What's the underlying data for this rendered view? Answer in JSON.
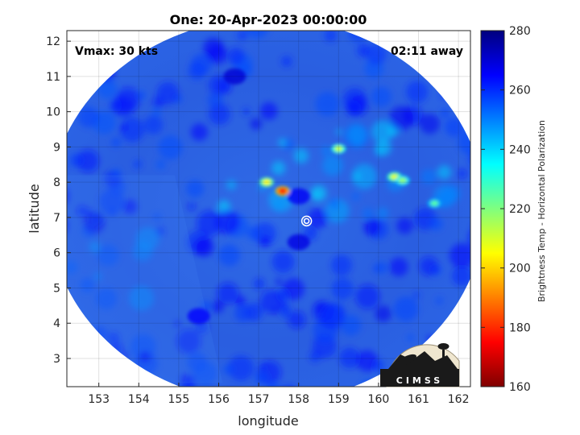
{
  "chart_data": {
    "type": "heatmap",
    "title": "One: 20-Apr-2023 00:00:00",
    "xlabel": "longitude",
    "ylabel": "latitude",
    "xlim": [
      152.2,
      162.3
    ],
    "ylim": [
      2.2,
      12.3
    ],
    "x_ticks": [
      153,
      154,
      155,
      156,
      157,
      158,
      159,
      160,
      161,
      162
    ],
    "y_ticks": [
      3,
      4,
      5,
      6,
      7,
      8,
      9,
      10,
      11,
      12
    ],
    "grid": true,
    "annotations": {
      "vmax": "Vmax: 30 kts",
      "away": "02:11 away"
    },
    "storm_center": {
      "lon": 158.2,
      "lat": 6.9
    },
    "colorbar": {
      "label": "Brightness Temp - Horizontal Polarization",
      "min": 160,
      "max": 280,
      "ticks": [
        160,
        180,
        200,
        220,
        240,
        260,
        280
      ]
    },
    "swath": {
      "center_lon": 157.2,
      "center_lat": 7.2,
      "radius_deg": 5.45
    },
    "hot_features": [
      {
        "lon": 157.6,
        "lat": 7.75,
        "value": 175
      },
      {
        "lon": 157.2,
        "lat": 8.0,
        "value": 205
      },
      {
        "lon": 159.0,
        "lat": 8.95,
        "value": 212
      },
      {
        "lon": 160.4,
        "lat": 8.15,
        "value": 208
      },
      {
        "lon": 160.6,
        "lat": 8.05,
        "value": 218
      },
      {
        "lon": 161.4,
        "lat": 7.4,
        "value": 225
      }
    ],
    "cold_features": [
      {
        "lon": 158.0,
        "lat": 7.6,
        "value": 266
      },
      {
        "lon": 158.0,
        "lat": 6.3,
        "value": 268
      },
      {
        "lon": 156.4,
        "lat": 11.0,
        "value": 270
      },
      {
        "lon": 155.5,
        "lat": 4.2,
        "value": 264
      }
    ]
  },
  "logo": {
    "text": "CIMSS"
  }
}
